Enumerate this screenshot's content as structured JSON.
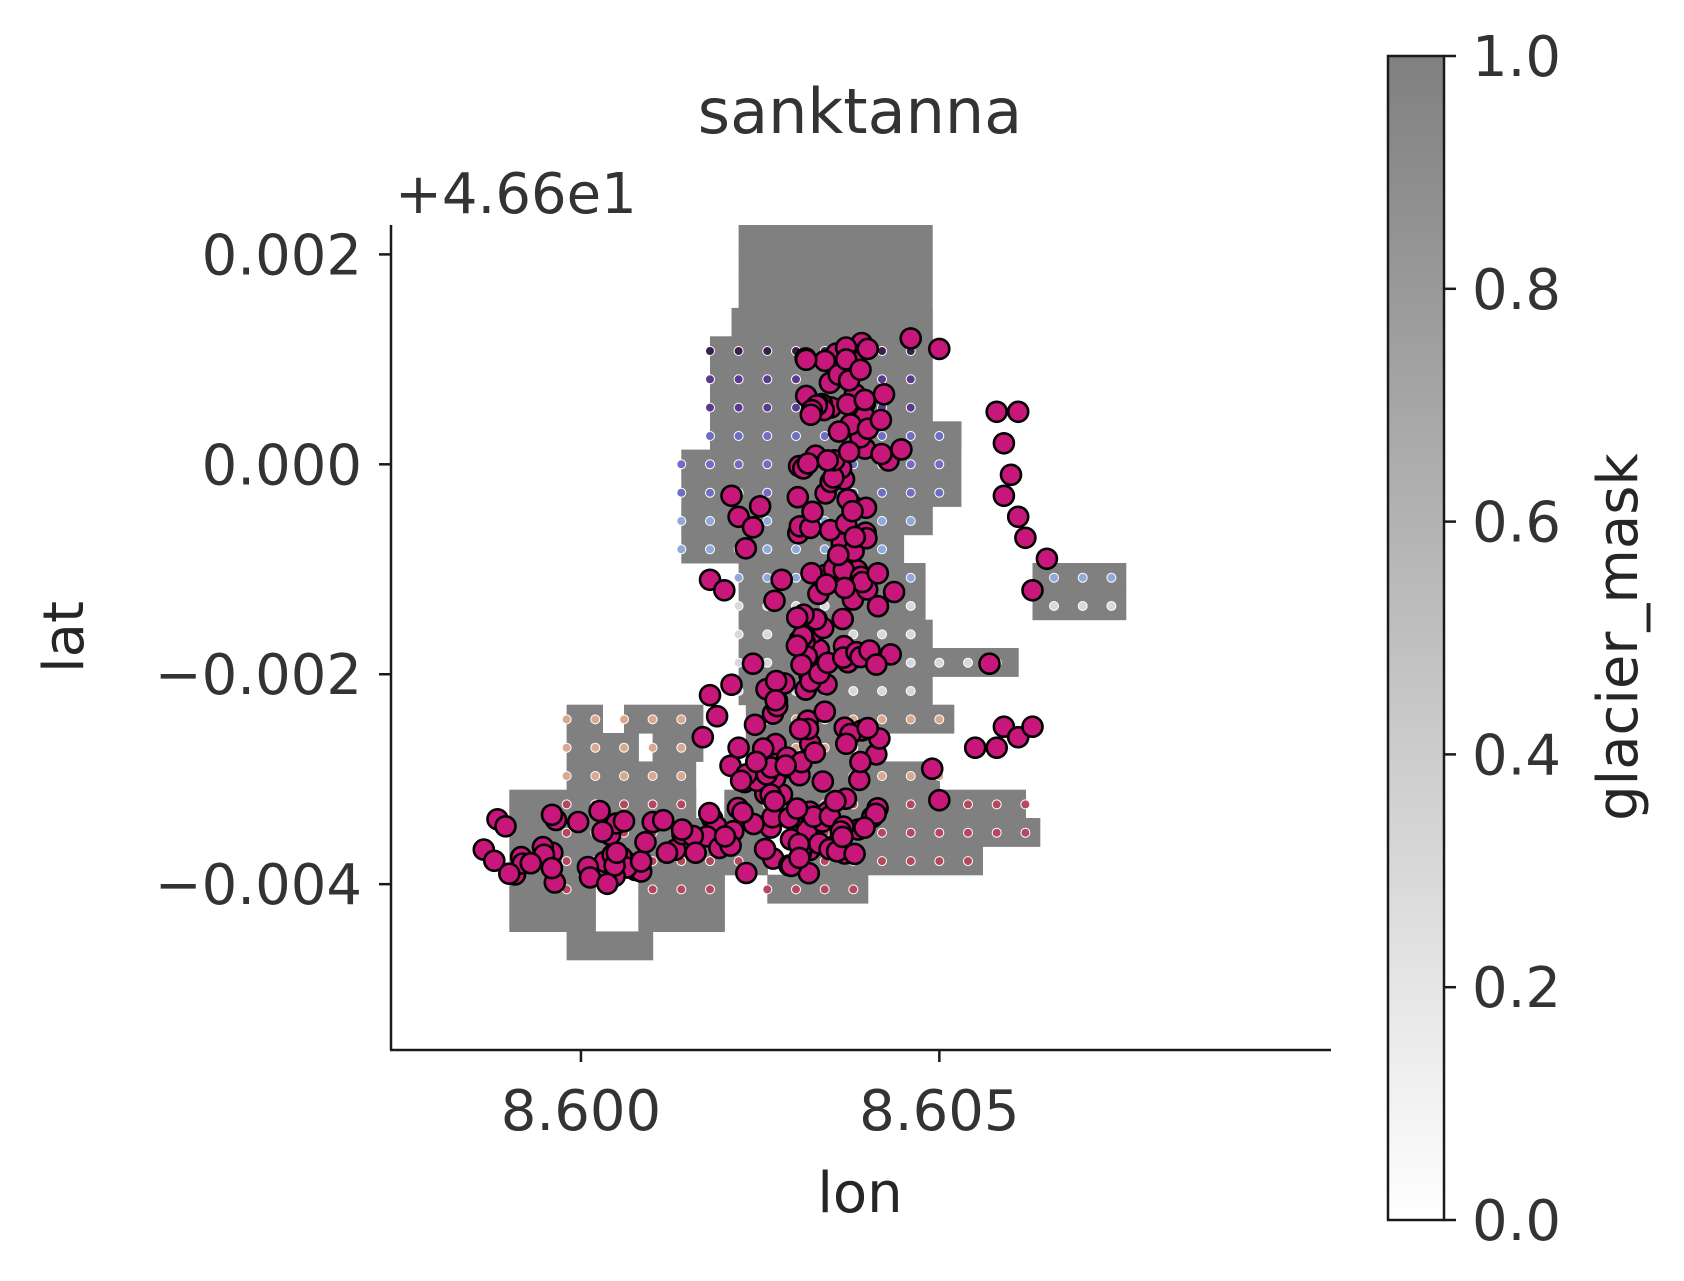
{
  "chart_data": {
    "type": "scatter",
    "title": "sanktanna",
    "xlabel": "lon",
    "ylabel": "lat",
    "y_offset_label": "+4.66e1",
    "y_offset": 46.6,
    "xlim": [
      8.59735,
      8.61045
    ],
    "ylim": [
      -0.00558,
      0.00228
    ],
    "x_ticks": [
      8.6,
      8.605
    ],
    "x_tick_labels": [
      "8.600",
      "8.605"
    ],
    "y_ticks": [
      0.002,
      0.0,
      -0.002,
      -0.004
    ],
    "y_tick_labels": [
      "0.002",
      "0.000",
      "−0.002",
      "−0.004"
    ],
    "grid": false,
    "background": {
      "name": "glacier_mask",
      "grid_dx": 0.0004,
      "grid_dy": 0.00027,
      "x_start": 8.5998,
      "y_start": -0.00472,
      "value": 1.0,
      "color": "#808080",
      "row_spans": [
        [
          [
            8.5998,
            8.601
          ]
        ],
        [
          [
            8.599,
            8.6002
          ],
          [
            8.6008,
            8.602
          ]
        ],
        [
          [
            8.599,
            8.6002
          ],
          [
            8.6008,
            8.602
          ],
          [
            8.6026,
            8.604
          ]
        ],
        [
          [
            8.599,
            8.6026
          ],
          [
            8.603,
            8.6056
          ]
        ],
        [
          [
            8.599,
            8.6026
          ],
          [
            8.603,
            8.6064
          ]
        ],
        [
          [
            8.599,
            8.6016
          ],
          [
            8.602,
            8.6062
          ]
        ],
        [
          [
            8.5998,
            8.6016
          ],
          [
            8.6024,
            8.605
          ]
        ],
        [
          [
            8.5998,
            8.6008
          ],
          [
            8.601,
            8.6017
          ],
          [
            8.6023,
            8.6042
          ]
        ],
        [
          [
            8.5998,
            8.6003
          ],
          [
            8.6006,
            8.6017
          ],
          [
            8.6023,
            8.6052
          ]
        ],
        [
          [
            8.6022,
            8.6049
          ]
        ],
        [
          [
            8.6022,
            8.6061
          ]
        ],
        [
          [
            8.6022,
            8.6049
          ]
        ],
        [
          [
            8.6022,
            8.6048
          ],
          [
            8.6063,
            8.6076
          ]
        ],
        [
          [
            8.6022,
            8.6048
          ],
          [
            8.6063,
            8.6076
          ]
        ],
        [
          [
            8.6014,
            8.6045
          ]
        ],
        [
          [
            8.6014,
            8.6049
          ]
        ],
        [
          [
            8.6014,
            8.6053
          ]
        ],
        [
          [
            8.6014,
            8.6053
          ]
        ],
        [
          [
            8.6018,
            8.6053
          ]
        ],
        [
          [
            8.6018,
            8.6049
          ]
        ],
        [
          [
            8.6018,
            8.6049
          ]
        ],
        [
          [
            8.6018,
            8.6049
          ]
        ],
        [
          [
            8.6021,
            8.6049
          ]
        ],
        [
          [
            8.6022,
            8.6049
          ]
        ],
        [
          [
            8.6022,
            8.6049
          ]
        ],
        [
          [
            8.6022,
            8.6049
          ]
        ],
        [
          [
            8.6022,
            8.6049
          ]
        ],
        [
          [
            8.6022,
            8.6045
          ]
        ],
        [
          [
            8.6026,
            8.6045
          ]
        ],
        [
          [
            8.6026,
            8.6045
          ]
        ],
        [
          [
            8.6026,
            8.6045
          ]
        ],
        [
          [
            8.6026,
            8.6037
          ]
        ]
      ]
    },
    "series": [
      {
        "color": "#c7177a",
        "edge_color": "#000000",
        "clusters": [
          {
            "x": [
              8.5983,
              8.6014
            ],
            "y": [
              -0.004,
              -0.0033
            ],
            "n": 34
          },
          {
            "x": [
              8.6014,
              8.6022
            ],
            "y": [
              -0.0038,
              -0.0033
            ],
            "n": 10
          },
          {
            "x": [
              8.602,
              8.603
            ],
            "y": [
              -0.0039,
              -0.0028
            ],
            "n": 24
          },
          {
            "x": [
              8.6028,
              8.6039
            ],
            "y": [
              -0.0039,
              -0.0033
            ],
            "n": 22
          },
          {
            "x": [
              8.6024,
              8.6035
            ],
            "y": [
              -0.0034,
              -0.002
            ],
            "n": 32
          },
          {
            "x": [
              8.6035,
              8.6043
            ],
            "y": [
              -0.0036,
              -0.0024
            ],
            "n": 18
          },
          {
            "x": [
              8.603,
              8.604
            ],
            "y": [
              -0.002,
              0.0
            ],
            "n": 60
          },
          {
            "x": [
              8.604,
              8.6044
            ],
            "y": [
              -0.002,
              -0.001
            ],
            "n": 6
          },
          {
            "x": [
              8.603,
              8.604
            ],
            "y": [
              0.0,
              0.0012
            ],
            "n": 35
          },
          {
            "x": [
              8.604,
              8.6045
            ],
            "y": [
              0.0,
              0.0009
            ],
            "n": 6
          }
        ],
        "points": [
          [
            8.604,
            0.0011
          ],
          [
            8.6046,
            0.0012
          ],
          [
            8.605,
            0.0011
          ],
          [
            8.6037,
            0.001
          ],
          [
            8.6039,
            0.0009
          ],
          [
            8.6058,
            0.0005
          ],
          [
            8.6061,
            0.0005
          ],
          [
            8.6059,
            0.0002
          ],
          [
            8.606,
            -0.0001
          ],
          [
            8.6059,
            -0.0003
          ],
          [
            8.6061,
            -0.0005
          ],
          [
            8.6062,
            -0.0007
          ],
          [
            8.6065,
            -0.0009
          ],
          [
            8.6063,
            -0.0012
          ],
          [
            8.6057,
            -0.0019
          ],
          [
            8.6059,
            -0.0025
          ],
          [
            8.6061,
            -0.0026
          ],
          [
            8.6063,
            -0.0025
          ],
          [
            8.6055,
            -0.0027
          ],
          [
            8.6058,
            -0.0027
          ],
          [
            8.605,
            -0.0032
          ],
          [
            8.6049,
            -0.0029
          ],
          [
            8.6022,
            -0.0005
          ],
          [
            8.6025,
            -0.0004
          ],
          [
            8.6021,
            -0.0003
          ],
          [
            8.6024,
            -0.0006
          ],
          [
            8.6023,
            -0.0008
          ],
          [
            8.6018,
            -0.0011
          ],
          [
            8.602,
            -0.0012
          ],
          [
            8.6028,
            -0.0011
          ],
          [
            8.6027,
            -0.0013
          ],
          [
            8.6024,
            -0.0019
          ],
          [
            8.6021,
            -0.0021
          ],
          [
            8.6019,
            -0.0024
          ],
          [
            8.6017,
            -0.0026
          ],
          [
            8.6022,
            -0.0027
          ],
          [
            8.6018,
            -0.0022
          ],
          [
            8.6016,
            -0.0037
          ],
          [
            8.6012,
            -0.0037
          ],
          [
            8.6009,
            -0.0036
          ],
          [
            8.6005,
            -0.0037
          ],
          [
            8.6006,
            -0.0034
          ],
          [
            8.6003,
            -0.0035
          ],
          [
            8.5993,
            -0.0038
          ],
          [
            8.599,
            -0.0039
          ]
        ]
      },
      {
        "name": "small_points",
        "colormap": "twilight",
        "color_bands": [
          {
            "y": [
              0.001,
              0.0013
            ],
            "color": "#3b1f4a"
          },
          {
            "y": [
              0.0005,
              0.001
            ],
            "color": "#5a3a8f"
          },
          {
            "y": [
              -0.0003,
              0.0005
            ],
            "color": "#6f6ec2"
          },
          {
            "y": [
              -0.0011,
              -0.0003
            ],
            "color": "#8fa9d9"
          },
          {
            "y": [
              -0.0023,
              -0.0011
            ],
            "color": "#d7d9df"
          },
          {
            "y": [
              -0.003,
              -0.0023
            ],
            "color": "#d9a98f"
          },
          {
            "y": [
              -0.0041,
              -0.003
            ],
            "color": "#b5475f"
          }
        ],
        "grid_points": {
          "dx": 0.0004,
          "dy": 0.00027,
          "x0": 8.5998,
          "y0": -0.00459
        }
      }
    ],
    "colorbar": {
      "label": "glacier_mask",
      "range": [
        0.0,
        1.0
      ],
      "ticks": [
        0.0,
        0.2,
        0.4,
        0.6,
        0.8,
        1.0
      ],
      "tick_labels": [
        "0.0",
        "0.2",
        "0.4",
        "0.6",
        "0.8",
        "1.0"
      ],
      "colormap": "Greys",
      "alpha": 0.5,
      "color_low": "#ffffff",
      "color_high": "#808080"
    }
  }
}
